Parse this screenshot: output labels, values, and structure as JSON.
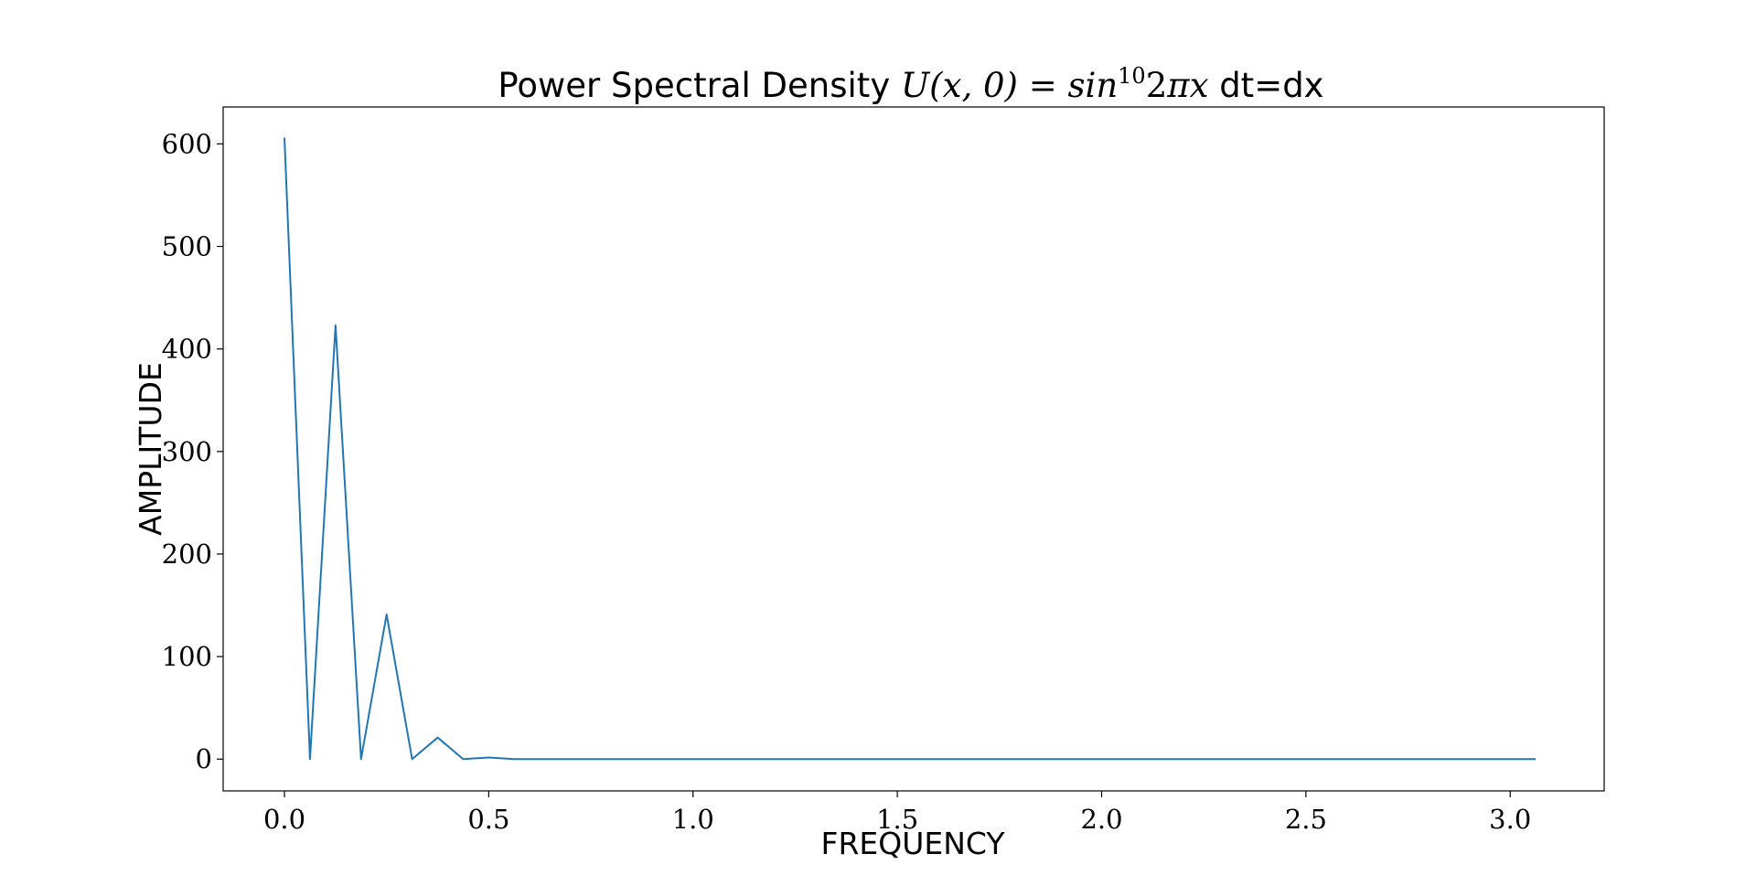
{
  "chart_data": {
    "type": "line",
    "title": {
      "prefix": "Power Spectral Density ",
      "math_lhs": "U",
      "math_args": "(x, 0) = ",
      "math_func": "sin",
      "math_exp": "10",
      "math_tail_num": "2",
      "math_tail_var": "πx",
      "suffix": " dt=dx"
    },
    "xlabel": "FREQUENCY",
    "ylabel": "AMPLITUDE",
    "xlim": [
      -0.15,
      3.23
    ],
    "ylim": [
      -31,
      636
    ],
    "xticks": [
      0.0,
      0.5,
      1.0,
      1.5,
      2.0,
      2.5,
      3.0
    ],
    "xtick_labels": [
      "0.0",
      "0.5",
      "1.0",
      "1.5",
      "2.0",
      "2.5",
      "3.0"
    ],
    "yticks": [
      0,
      100,
      200,
      300,
      400,
      500,
      600
    ],
    "ytick_labels": [
      "0",
      "100",
      "200",
      "300",
      "400",
      "500",
      "600"
    ],
    "grid": false,
    "series": [
      {
        "color": "#1f77b4",
        "x": [
          0.0,
          0.0625,
          0.125,
          0.1875,
          0.25,
          0.3125,
          0.375,
          0.4375,
          0.5,
          0.5625,
          0.625,
          0.6875,
          0.75,
          0.8125,
          0.875,
          0.9375,
          1.0,
          1.0625,
          1.125,
          1.1875,
          1.25,
          1.3125,
          1.375,
          1.4375,
          1.5,
          1.5625,
          1.625,
          1.6875,
          1.75,
          1.8125,
          1.875,
          1.9375,
          2.0,
          2.0625,
          2.125,
          2.1875,
          2.25,
          2.3125,
          2.375,
          2.4375,
          2.5,
          2.5625,
          2.625,
          2.6875,
          2.75,
          2.8125,
          2.875,
          2.9375,
          3.0,
          3.0625
        ],
        "y": [
          606,
          0,
          423,
          0,
          141,
          0,
          21,
          0,
          1.5,
          0,
          0,
          0,
          0,
          0,
          0,
          0,
          0,
          0,
          0,
          0,
          0,
          0,
          0,
          0,
          0,
          0,
          0,
          0,
          0,
          0,
          0,
          0,
          0,
          0,
          0,
          0,
          0,
          0,
          0,
          0,
          0,
          0,
          0,
          0,
          0,
          0,
          0,
          0,
          0,
          0
        ]
      }
    ]
  }
}
